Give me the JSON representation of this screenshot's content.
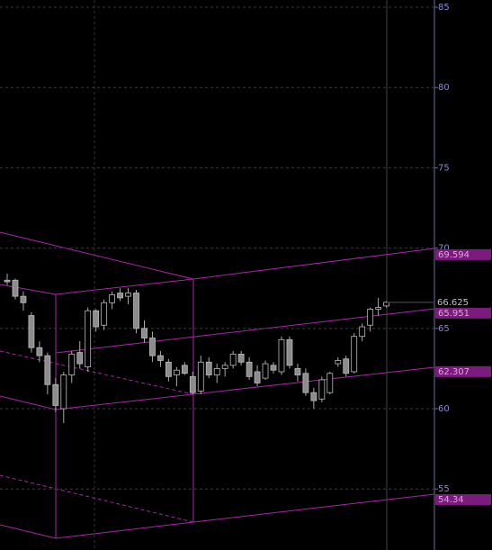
{
  "chart_data": {
    "type": "candlestick",
    "ylim": [
      51.2,
      85.45
    ],
    "yticks": [
      55,
      60,
      65,
      70,
      75,
      80,
      85
    ],
    "grid": true,
    "up_color": "#000000",
    "down_color": "#8c8c8c",
    "open": [
      68.0,
      68.0,
      67.0,
      65.8,
      63.8,
      63.3,
      61.5,
      60.0,
      62.1,
      63.5,
      62.6,
      66.1,
      65.2,
      66.6,
      67.2,
      67.0,
      67.2,
      65.0,
      64.4,
      63.3,
      62.9,
      62.1,
      62.7,
      62.0,
      61.1,
      62.9,
      62.1,
      62.5,
      62.7,
      63.4,
      62.9,
      62.3,
      61.9,
      62.7,
      62.3,
      64.3,
      62.5,
      62.2,
      61.0,
      60.6,
      61.0,
      62.8,
      63.1,
      62.3,
      64.5,
      65.2,
      66.2,
      66.4
    ],
    "high": [
      68.4,
      68.1,
      67.3,
      66.0,
      64.2,
      63.5,
      61.9,
      62.3,
      63.6,
      64.2,
      66.3,
      66.2,
      66.8,
      67.3,
      67.5,
      67.5,
      67.4,
      65.5,
      64.8,
      63.6,
      63.1,
      62.6,
      62.9,
      62.3,
      63.3,
      63.2,
      62.8,
      62.9,
      63.6,
      63.6,
      63.2,
      62.7,
      63.0,
      62.9,
      64.5,
      64.5,
      62.8,
      62.5,
      61.3,
      62.0,
      62.3,
      63.2,
      63.3,
      64.7,
      65.3,
      66.3,
      66.9,
      66.7
    ],
    "low": [
      67.7,
      66.8,
      66.1,
      63.5,
      62.9,
      60.9,
      59.8,
      59.1,
      61.6,
      62.5,
      62.3,
      64.8,
      64.9,
      66.2,
      66.7,
      66.5,
      64.7,
      64.1,
      62.9,
      62.6,
      61.7,
      61.4,
      62.1,
      60.9,
      60.9,
      61.9,
      61.6,
      62.0,
      62.5,
      62.7,
      61.8,
      61.4,
      61.8,
      62.2,
      62.1,
      62.5,
      61.7,
      60.8,
      60.0,
      60.4,
      60.9,
      62.6,
      62.0,
      62.2,
      64.2,
      64.8,
      65.8,
      66.3
    ],
    "close": [
      67.9,
      67.0,
      66.6,
      63.8,
      63.3,
      61.5,
      60.2,
      62.1,
      63.4,
      62.8,
      66.1,
      65.1,
      66.6,
      67.1,
      66.9,
      67.2,
      65.0,
      64.4,
      63.3,
      63.0,
      62.0,
      62.4,
      62.2,
      61.0,
      62.9,
      62.1,
      62.5,
      62.7,
      63.4,
      62.9,
      62.0,
      61.6,
      62.8,
      62.4,
      64.3,
      62.7,
      62.1,
      61.0,
      60.5,
      61.8,
      62.2,
      63.0,
      62.2,
      64.5,
      65.1,
      66.2,
      66.3,
      66.625
    ],
    "last_price": 66.625,
    "price_labels": [
      69.594,
      65.951,
      62.307,
      54.34
    ],
    "channel_color": "#a626a6"
  }
}
